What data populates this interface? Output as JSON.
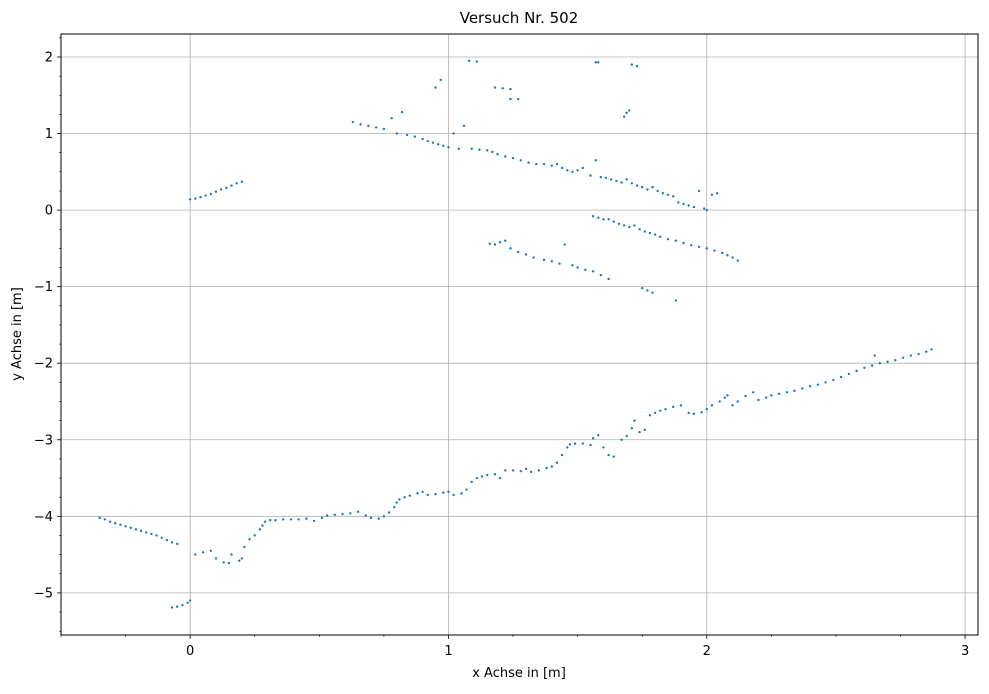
{
  "chart_data": {
    "type": "scatter",
    "title": "Versuch Nr. 502",
    "xlabel": "x Achse in [m]",
    "ylabel": "y Achse in [m]",
    "xlim": [
      -0.5,
      3.05
    ],
    "ylim": [
      -5.55,
      2.3
    ],
    "x_ticks": [
      {
        "value": 0,
        "label": "0"
      },
      {
        "value": 1,
        "label": "1"
      },
      {
        "value": 2,
        "label": "2"
      },
      {
        "value": 3,
        "label": "3"
      }
    ],
    "y_ticks": [
      {
        "value": 2,
        "label": "2"
      },
      {
        "value": 1,
        "label": "1"
      },
      {
        "value": 0,
        "label": "0"
      },
      {
        "value": -1,
        "label": "−1"
      },
      {
        "value": -2,
        "label": "−2"
      },
      {
        "value": -3,
        "label": "−3"
      },
      {
        "value": -4,
        "label": "−4"
      },
      {
        "value": -5,
        "label": "−5"
      }
    ],
    "x_minor_step": 0.25,
    "y_minor_step": 0.25,
    "grid": true,
    "marker_color": "#1f77b4",
    "series": [
      {
        "points": [
          [
            -0.35,
            -4.02
          ],
          [
            -0.33,
            -4.04
          ],
          [
            -0.31,
            -4.07
          ],
          [
            -0.29,
            -4.09
          ],
          [
            -0.27,
            -4.11
          ],
          [
            -0.25,
            -4.13
          ],
          [
            -0.23,
            -4.15
          ],
          [
            -0.21,
            -4.17
          ],
          [
            -0.19,
            -4.19
          ],
          [
            -0.17,
            -4.21
          ],
          [
            -0.15,
            -4.23
          ],
          [
            -0.13,
            -4.25
          ],
          [
            -0.11,
            -4.28
          ],
          [
            -0.09,
            -4.31
          ],
          [
            -0.07,
            -4.34
          ],
          [
            -0.05,
            -4.36
          ],
          [
            -0.07,
            -5.19
          ],
          [
            -0.05,
            -5.18
          ],
          [
            -0.03,
            -5.16
          ],
          [
            -0.01,
            -5.13
          ],
          [
            0.0,
            -5.1
          ],
          [
            0.02,
            -4.5
          ],
          [
            0.05,
            -4.47
          ],
          [
            0.08,
            -4.45
          ],
          [
            0.1,
            -4.55
          ],
          [
            0.13,
            -4.6
          ],
          [
            0.15,
            -4.61
          ],
          [
            0.16,
            -4.5
          ],
          [
            0.19,
            -4.58
          ],
          [
            0.2,
            -4.55
          ],
          [
            0.21,
            -4.4
          ],
          [
            0.23,
            -4.3
          ],
          [
            0.25,
            -4.25
          ],
          [
            0.27,
            -4.17
          ],
          [
            0.28,
            -4.12
          ],
          [
            0.29,
            -4.07
          ],
          [
            0.31,
            -4.05
          ],
          [
            0.33,
            -4.05
          ],
          [
            0.36,
            -4.04
          ],
          [
            0.39,
            -4.04
          ],
          [
            0.42,
            -4.04
          ],
          [
            0.45,
            -4.03
          ],
          [
            0.48,
            -4.06
          ],
          [
            0.51,
            -4.02
          ],
          [
            0.53,
            -3.99
          ],
          [
            0.56,
            -3.98
          ],
          [
            0.59,
            -3.97
          ],
          [
            0.62,
            -3.96
          ],
          [
            0.65,
            -3.94
          ],
          [
            0.68,
            -3.99
          ],
          [
            0.7,
            -4.02
          ],
          [
            0.73,
            -4.03
          ],
          [
            0.75,
            -4.0
          ],
          [
            0.77,
            -3.95
          ],
          [
            0.79,
            -3.88
          ],
          [
            0.8,
            -3.82
          ],
          [
            0.81,
            -3.78
          ],
          [
            0.83,
            -3.75
          ],
          [
            0.85,
            -3.73
          ],
          [
            0.88,
            -3.7
          ],
          [
            0.9,
            -3.68
          ],
          [
            0.92,
            -3.72
          ],
          [
            0.95,
            -3.71
          ],
          [
            0.98,
            -3.69
          ],
          [
            1.0,
            -3.68
          ],
          [
            1.02,
            -3.72
          ],
          [
            1.05,
            -3.7
          ],
          [
            1.07,
            -3.65
          ],
          [
            1.09,
            -3.55
          ],
          [
            1.11,
            -3.5
          ],
          [
            1.13,
            -3.48
          ],
          [
            1.15,
            -3.46
          ],
          [
            1.18,
            -3.45
          ],
          [
            1.2,
            -3.5
          ],
          [
            1.22,
            -3.4
          ],
          [
            1.25,
            -3.4
          ],
          [
            1.28,
            -3.41
          ],
          [
            1.3,
            -3.38
          ],
          [
            1.32,
            -3.42
          ],
          [
            1.35,
            -3.4
          ],
          [
            1.38,
            -3.37
          ],
          [
            1.4,
            -3.35
          ],
          [
            1.42,
            -3.3
          ],
          [
            1.44,
            -3.2
          ],
          [
            1.46,
            -3.1
          ],
          [
            1.47,
            -3.06
          ],
          [
            1.49,
            -3.05
          ],
          [
            1.52,
            -3.05
          ],
          [
            1.55,
            -3.07
          ],
          [
            1.56,
            -2.98
          ],
          [
            1.58,
            -2.94
          ],
          [
            1.6,
            -3.1
          ],
          [
            1.62,
            -3.2
          ],
          [
            1.64,
            -3.22
          ],
          [
            1.67,
            -3.0
          ],
          [
            1.69,
            -2.95
          ],
          [
            1.71,
            -2.85
          ],
          [
            1.72,
            -2.75
          ],
          [
            1.74,
            -2.9
          ],
          [
            1.76,
            -2.87
          ],
          [
            1.78,
            -2.68
          ],
          [
            1.8,
            -2.65
          ],
          [
            1.82,
            -2.62
          ],
          [
            1.84,
            -2.6
          ],
          [
            1.87,
            -2.57
          ],
          [
            1.9,
            -2.55
          ],
          [
            1.93,
            -2.65
          ],
          [
            1.95,
            -2.66
          ],
          [
            1.98,
            -2.64
          ],
          [
            2.0,
            -2.6
          ],
          [
            2.02,
            -2.55
          ],
          [
            2.05,
            -2.5
          ],
          [
            2.07,
            -2.45
          ],
          [
            2.08,
            -2.42
          ],
          [
            2.1,
            -2.55
          ],
          [
            2.12,
            -2.5
          ],
          [
            2.15,
            -2.43
          ],
          [
            2.18,
            -2.38
          ],
          [
            2.2,
            -2.48
          ],
          [
            2.23,
            -2.45
          ],
          [
            2.25,
            -2.42
          ],
          [
            2.28,
            -2.4
          ],
          [
            2.31,
            -2.38
          ],
          [
            2.34,
            -2.36
          ],
          [
            2.37,
            -2.33
          ],
          [
            2.4,
            -2.3
          ],
          [
            2.43,
            -2.28
          ],
          [
            2.46,
            -2.25
          ],
          [
            2.49,
            -2.22
          ],
          [
            2.52,
            -2.18
          ],
          [
            2.55,
            -2.14
          ],
          [
            2.58,
            -2.1
          ],
          [
            2.61,
            -2.06
          ],
          [
            2.64,
            -2.03
          ],
          [
            2.65,
            -1.9
          ],
          [
            2.67,
            -2.0
          ],
          [
            2.7,
            -1.98
          ],
          [
            2.73,
            -1.96
          ],
          [
            2.76,
            -1.93
          ],
          [
            2.79,
            -1.9
          ],
          [
            2.82,
            -1.88
          ],
          [
            2.85,
            -1.85
          ],
          [
            2.87,
            -1.82
          ],
          [
            0.0,
            0.14
          ],
          [
            0.02,
            0.15
          ],
          [
            0.04,
            0.17
          ],
          [
            0.06,
            0.19
          ],
          [
            0.08,
            0.21
          ],
          [
            0.1,
            0.24
          ],
          [
            0.12,
            0.27
          ],
          [
            0.14,
            0.29
          ],
          [
            0.16,
            0.32
          ],
          [
            0.18,
            0.35
          ],
          [
            0.2,
            0.37
          ],
          [
            0.63,
            1.15
          ],
          [
            0.66,
            1.12
          ],
          [
            0.69,
            1.1
          ],
          [
            0.72,
            1.08
          ],
          [
            0.75,
            1.06
          ],
          [
            0.78,
            1.2
          ],
          [
            0.8,
            1.0
          ],
          [
            0.82,
            1.28
          ],
          [
            0.84,
            0.98
          ],
          [
            0.87,
            0.96
          ],
          [
            0.9,
            0.93
          ],
          [
            0.92,
            0.9
          ],
          [
            0.94,
            0.88
          ],
          [
            0.96,
            0.86
          ],
          [
            0.98,
            0.84
          ],
          [
            1.0,
            0.82
          ],
          [
            1.02,
            1.0
          ],
          [
            1.04,
            0.8
          ],
          [
            1.06,
            1.1
          ],
          [
            1.09,
            0.8
          ],
          [
            1.12,
            0.79
          ],
          [
            1.15,
            0.78
          ],
          [
            1.17,
            0.76
          ],
          [
            1.19,
            0.73
          ],
          [
            1.22,
            0.7
          ],
          [
            1.25,
            0.68
          ],
          [
            1.28,
            0.65
          ],
          [
            1.31,
            0.62
          ],
          [
            1.34,
            0.6
          ],
          [
            1.37,
            0.6
          ],
          [
            1.4,
            0.58
          ],
          [
            1.42,
            0.6
          ],
          [
            1.44,
            0.55
          ],
          [
            1.46,
            0.52
          ],
          [
            1.48,
            0.5
          ],
          [
            1.5,
            0.52
          ],
          [
            1.52,
            0.55
          ],
          [
            1.55,
            0.45
          ],
          [
            1.57,
            0.65
          ],
          [
            1.59,
            0.43
          ],
          [
            1.61,
            0.42
          ],
          [
            1.63,
            0.4
          ],
          [
            1.65,
            0.38
          ],
          [
            1.67,
            0.36
          ],
          [
            1.69,
            0.4
          ],
          [
            1.71,
            0.35
          ],
          [
            1.73,
            0.32
          ],
          [
            1.75,
            0.3
          ],
          [
            1.77,
            0.27
          ],
          [
            1.79,
            0.3
          ],
          [
            1.81,
            0.25
          ],
          [
            1.83,
            0.22
          ],
          [
            1.85,
            0.2
          ],
          [
            1.87,
            0.18
          ],
          [
            1.89,
            0.1
          ],
          [
            1.91,
            0.08
          ],
          [
            1.93,
            0.06
          ],
          [
            1.95,
            0.04
          ],
          [
            1.97,
            0.25
          ],
          [
            1.99,
            0.02
          ],
          [
            2.0,
            0.0
          ],
          [
            2.02,
            0.2
          ],
          [
            2.04,
            0.22
          ],
          [
            1.16,
            -0.44
          ],
          [
            1.18,
            -0.45
          ],
          [
            1.2,
            -0.42
          ],
          [
            1.22,
            -0.4
          ],
          [
            1.24,
            -0.5
          ],
          [
            1.27,
            -0.55
          ],
          [
            1.3,
            -0.58
          ],
          [
            1.33,
            -0.62
          ],
          [
            1.37,
            -0.65
          ],
          [
            1.4,
            -0.67
          ],
          [
            1.43,
            -0.7
          ],
          [
            1.45,
            -0.45
          ],
          [
            1.48,
            -0.72
          ],
          [
            1.5,
            -0.75
          ],
          [
            1.53,
            -0.78
          ],
          [
            1.56,
            -0.8
          ],
          [
            1.59,
            -0.85
          ],
          [
            1.62,
            -0.9
          ],
          [
            1.75,
            -1.02
          ],
          [
            1.77,
            -1.05
          ],
          [
            1.79,
            -1.08
          ],
          [
            1.88,
            -1.18
          ],
          [
            1.56,
            -0.08
          ],
          [
            1.58,
            -0.1
          ],
          [
            1.6,
            -0.12
          ],
          [
            1.62,
            -0.12
          ],
          [
            1.64,
            -0.15
          ],
          [
            1.66,
            -0.18
          ],
          [
            1.68,
            -0.2
          ],
          [
            1.7,
            -0.22
          ],
          [
            1.72,
            -0.2
          ],
          [
            1.74,
            -0.25
          ],
          [
            1.76,
            -0.28
          ],
          [
            1.78,
            -0.3
          ],
          [
            1.8,
            -0.32
          ],
          [
            1.82,
            -0.35
          ],
          [
            1.85,
            -0.38
          ],
          [
            1.88,
            -0.4
          ],
          [
            1.91,
            -0.43
          ],
          [
            1.94,
            -0.46
          ],
          [
            1.97,
            -0.48
          ],
          [
            2.0,
            -0.5
          ],
          [
            2.03,
            -0.53
          ],
          [
            2.06,
            -0.56
          ],
          [
            2.08,
            -0.59
          ],
          [
            2.1,
            -0.62
          ],
          [
            2.12,
            -0.66
          ],
          [
            0.95,
            1.6
          ],
          [
            0.97,
            1.7
          ],
          [
            1.08,
            1.95
          ],
          [
            1.11,
            1.94
          ],
          [
            1.18,
            1.6
          ],
          [
            1.21,
            1.59
          ],
          [
            1.24,
            1.58
          ],
          [
            1.24,
            1.45
          ],
          [
            1.27,
            1.45
          ],
          [
            1.57,
            1.93
          ],
          [
            1.58,
            1.93
          ],
          [
            1.68,
            1.22
          ],
          [
            1.69,
            1.27
          ],
          [
            1.7,
            1.3
          ],
          [
            1.71,
            1.9
          ],
          [
            1.73,
            1.88
          ]
        ]
      }
    ]
  }
}
